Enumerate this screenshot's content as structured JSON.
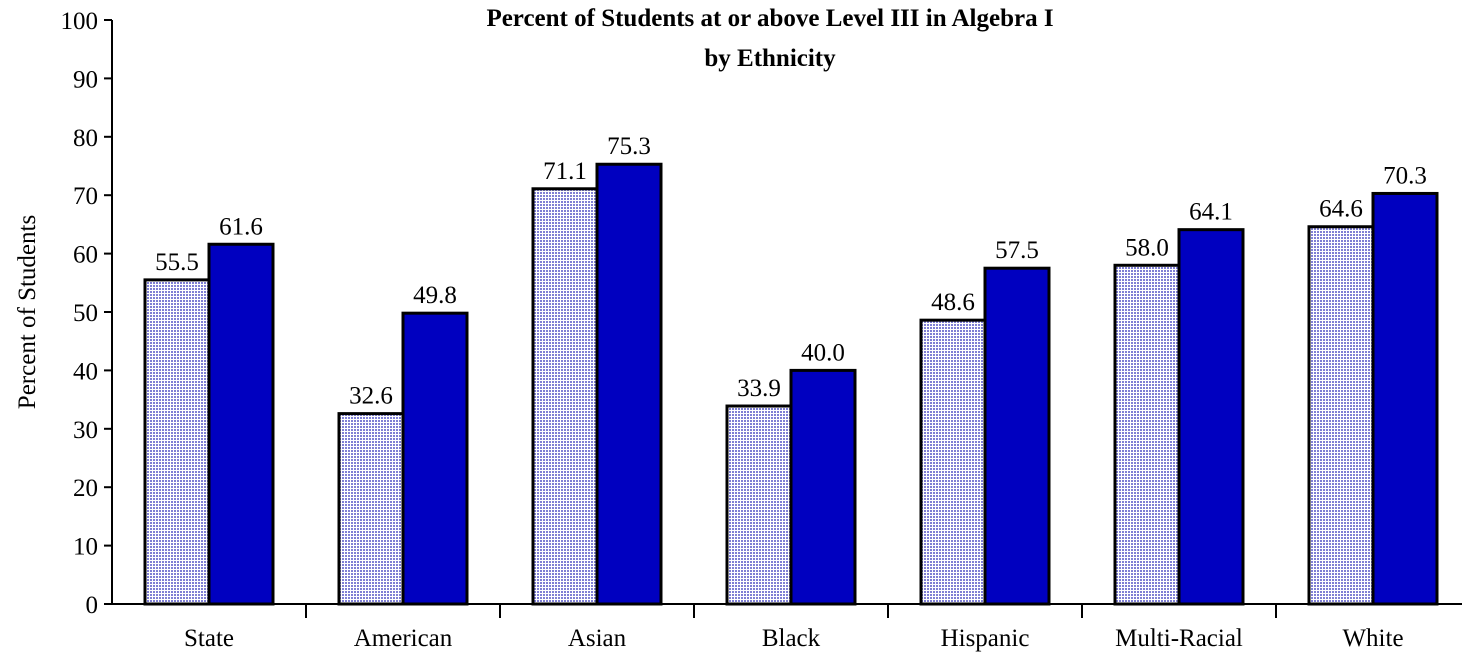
{
  "chart_data": {
    "type": "bar",
    "title": "Percent of Students at or above Level III in Algebra I",
    "subtitle": "by Ethnicity",
    "ylabel": "Percent of Students",
    "xlabel": "",
    "ylim": [
      0,
      100
    ],
    "yticks": [
      "0",
      "10",
      "20",
      "30",
      "40",
      "50",
      "60",
      "70",
      "80",
      "90",
      "100"
    ],
    "categories": [
      "State",
      "American",
      "Asian",
      "Black",
      "Hispanic",
      "Multi-Racial",
      "White"
    ],
    "series": [
      {
        "values": [
          55.5,
          32.6,
          71.1,
          33.9,
          48.6,
          58.0,
          64.6
        ],
        "labels": [
          "55.5",
          "32.6",
          "71.1",
          "33.9",
          "48.6",
          "58.0",
          "64.6"
        ],
        "color": "#8e8ed8",
        "fill": "dotted"
      },
      {
        "values": [
          61.6,
          49.8,
          75.3,
          40.0,
          57.5,
          64.1,
          70.3
        ],
        "labels": [
          "61.6",
          "49.8",
          "75.3",
          "40.0",
          "57.5",
          "64.1",
          "70.3"
        ],
        "color": "#0000c0",
        "fill": "solid"
      }
    ],
    "grid": false,
    "legend": "none"
  }
}
